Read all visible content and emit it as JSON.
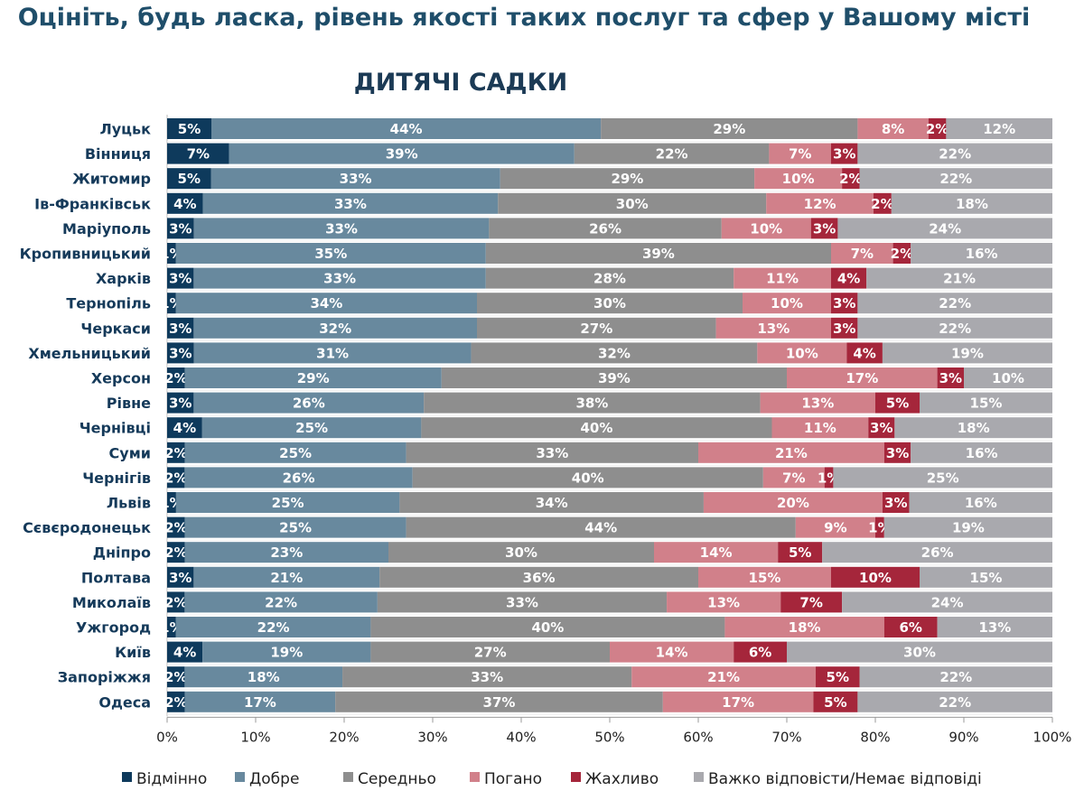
{
  "title": "Оцініть, будь ласка, рівень якості таких послуг та сфер у Вашому місті",
  "chart_data": {
    "type": "bar",
    "orientation": "horizontal",
    "stacked": "100%",
    "title": "ДИТЯЧІ САДКИ",
    "xlim": [
      0,
      100
    ],
    "xticks": [
      "0%",
      "10%",
      "20%",
      "30%",
      "40%",
      "50%",
      "60%",
      "70%",
      "80%",
      "90%",
      "100%"
    ],
    "legend_position": "bottom",
    "categories": [
      "Луцьк",
      "Вінниця",
      "Житомир",
      "Ів-Франківськ",
      "Маріуполь",
      "Кропивницький",
      "Харків",
      "Тернопіль",
      "Черкаси",
      "Хмельницький",
      "Херсон",
      "Рівне",
      "Чернівці",
      "Суми",
      "Чернігів",
      "Львів",
      "Сєвєродонецьк",
      "Дніпро",
      "Полтава",
      "Миколаїв",
      "Ужгород",
      "Київ",
      "Запоріжжя",
      "Одеса"
    ],
    "series": [
      {
        "name": "Відмінно",
        "color": "#0e3a5c",
        "values": [
          5,
          7,
          5,
          4,
          3,
          1,
          3,
          1,
          3,
          3,
          2,
          3,
          4,
          2,
          2,
          1,
          2,
          2,
          3,
          2,
          1,
          4,
          2,
          2
        ]
      },
      {
        "name": "Добре",
        "color": "#68899e",
        "values": [
          44,
          39,
          33,
          33,
          33,
          35,
          33,
          34,
          32,
          31,
          29,
          26,
          25,
          25,
          26,
          25,
          25,
          23,
          21,
          22,
          22,
          19,
          18,
          17
        ]
      },
      {
        "name": "Середньо",
        "color": "#8e8e8e",
        "values": [
          29,
          22,
          29,
          30,
          26,
          39,
          28,
          30,
          27,
          32,
          39,
          38,
          40,
          33,
          40,
          34,
          44,
          30,
          36,
          33,
          40,
          27,
          33,
          37
        ]
      },
      {
        "name": "Погано",
        "color": "#d1808a",
        "values": [
          8,
          7,
          10,
          12,
          10,
          7,
          11,
          10,
          13,
          10,
          17,
          13,
          11,
          21,
          7,
          20,
          9,
          14,
          15,
          13,
          18,
          14,
          21,
          17
        ]
      },
      {
        "name": "Жахливо",
        "color": "#a5263b",
        "values": [
          2,
          3,
          2,
          2,
          3,
          2,
          4,
          3,
          3,
          4,
          3,
          5,
          3,
          3,
          1,
          3,
          1,
          5,
          10,
          7,
          6,
          6,
          5,
          5
        ]
      },
      {
        "name": "Важко відповісти/Немає відповіді",
        "color": "#a9a9ae",
        "values": [
          12,
          22,
          22,
          18,
          24,
          16,
          21,
          22,
          22,
          19,
          10,
          15,
          18,
          16,
          25,
          16,
          19,
          26,
          15,
          24,
          13,
          30,
          22,
          22
        ]
      }
    ]
  }
}
